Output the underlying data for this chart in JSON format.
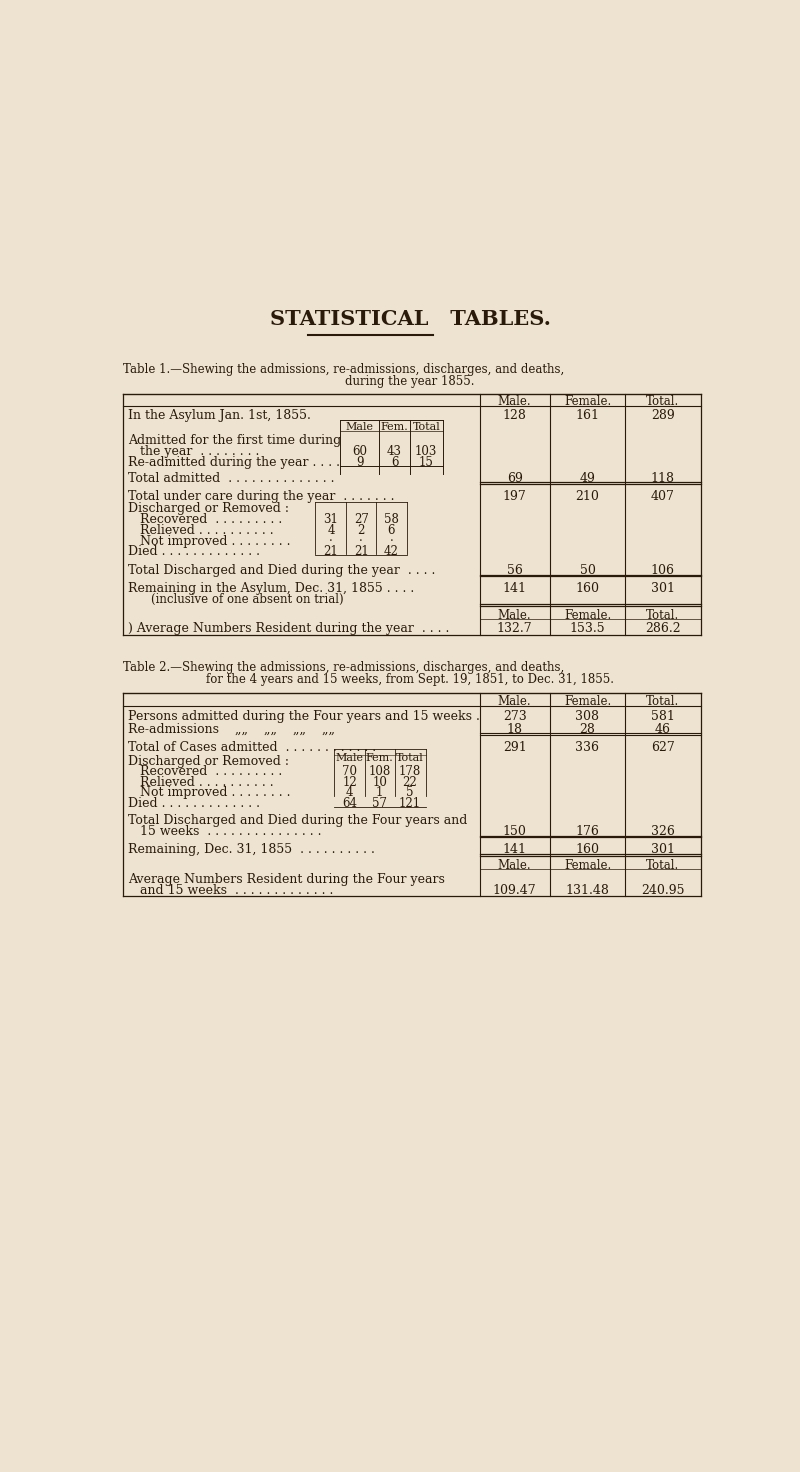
{
  "bg_color": "#ede3d0",
  "text_color": "#2a1a0a",
  "page_title": "STATISTICAL   TABLES.",
  "table1_caption_line1": "Table 1.—Shewing the admissions, re-admissions, discharges, and deaths,",
  "table1_caption_line2": "during the year 1855.",
  "table2_caption_line1": "Table 2.—Shewing the admissions, re-admissions, discharges, and deaths,",
  "table2_caption_line2": "for the 4 years and 15 weeks, from Sept. 19, 1851, to Dec. 31, 1855."
}
